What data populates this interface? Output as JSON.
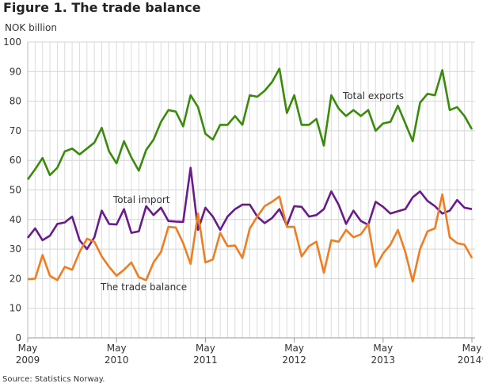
{
  "chart_data": {
    "type": "line",
    "title": "Figure 1. The trade balance",
    "ylabel": "NOK billion",
    "xlabel": "",
    "ylim": [
      0,
      100
    ],
    "yticks": [
      0,
      10,
      20,
      30,
      40,
      50,
      60,
      70,
      80,
      90,
      100
    ],
    "grid": true,
    "x_start": "May 2009",
    "x_end": "May 2014",
    "xtick_labels": [
      {
        "month": "May",
        "year": "2009",
        "index": 0
      },
      {
        "month": "May",
        "year": "2010",
        "index": 12
      },
      {
        "month": "May",
        "year": "2011",
        "index": 24
      },
      {
        "month": "May",
        "year": "2012",
        "index": 36
      },
      {
        "month": "May",
        "year": "2013",
        "index": 48
      },
      {
        "month": "May",
        "year": "2014*",
        "index": 60
      }
    ],
    "series": [
      {
        "name": "Total exports",
        "color": "#3a8a0b",
        "values": [
          53.5,
          57,
          60.8,
          55,
          57.5,
          63,
          64,
          62,
          64,
          66,
          71,
          63,
          59,
          66.5,
          61,
          56.5,
          63.5,
          67,
          73,
          77,
          76.5,
          71.5,
          82,
          78,
          69,
          67,
          72,
          72,
          75,
          72,
          82,
          81.5,
          83.5,
          86.5,
          91,
          76,
          82,
          72,
          72,
          74,
          65,
          82,
          77.5,
          75,
          77,
          75,
          77,
          70,
          72.5,
          73,
          78.5,
          72.5,
          66.5,
          79.5,
          82.5,
          82,
          90.5,
          77,
          78,
          75,
          70.5
        ]
      },
      {
        "name": "Total import",
        "color": "#6a1a8c",
        "values": [
          33.8,
          37,
          33,
          34.5,
          38.5,
          39,
          41,
          33,
          30,
          34,
          43,
          38.5,
          38.3,
          43.5,
          35.5,
          36,
          44.5,
          41.5,
          44,
          39.5,
          39.3,
          39.2,
          57.5,
          36.5,
          44,
          41,
          36.5,
          41,
          43.5,
          45,
          45,
          41,
          38.8,
          40.5,
          43.5,
          38,
          44.5,
          44.3,
          41,
          41.5,
          43.5,
          49.5,
          45,
          38.5,
          43,
          39.5,
          38.2,
          46,
          44.3,
          42,
          42.8,
          43.5,
          47.5,
          49.5,
          46.3,
          44.5,
          42,
          43,
          46.6,
          44,
          43.5
        ]
      },
      {
        "name": "The trade balance",
        "color": "#f07d22",
        "values": [
          19.8,
          20,
          28,
          21,
          19.5,
          24,
          23,
          29,
          33.5,
          32.5,
          27.5,
          24,
          21,
          23,
          25.5,
          20.5,
          19.5,
          25.5,
          29,
          37.5,
          37.3,
          32,
          25,
          42,
          25.5,
          26.5,
          35.5,
          31,
          31.2,
          27,
          37,
          41,
          44.5,
          46,
          47.8,
          37.5,
          37.5,
          27.5,
          31,
          32.5,
          22,
          33,
          32.5,
          36.5,
          34,
          35,
          38.5,
          24,
          28.5,
          31.5,
          36.5,
          29,
          19,
          30,
          36,
          37,
          48.5,
          34,
          32,
          31.5,
          27
        ]
      }
    ]
  },
  "source": "Source: Statistics Norway."
}
